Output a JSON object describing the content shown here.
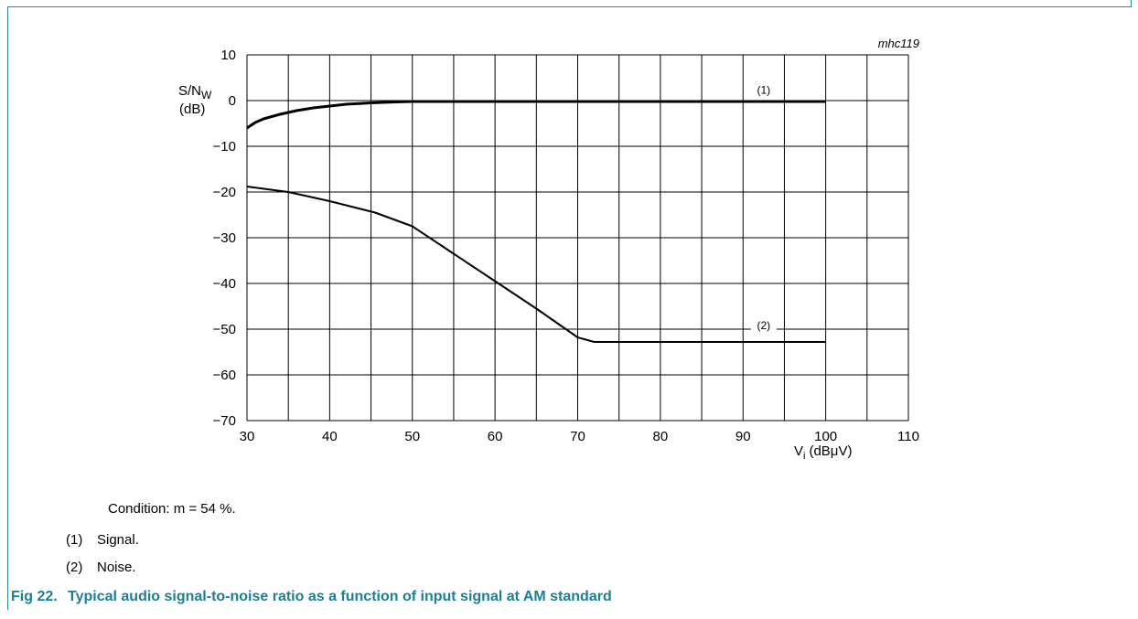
{
  "figure": {
    "code": "mhc119",
    "number": "Fig 22.",
    "title": "Typical audio signal-to-noise ratio as a function of input signal at AM standard"
  },
  "notes": {
    "condition": "Condition: m = 54 %.",
    "items": [
      {
        "num": "(1)",
        "text": "Signal."
      },
      {
        "num": "(2)",
        "text": "Noise."
      }
    ]
  },
  "colors": {
    "frame": "#2a8a98",
    "caption": "#1b7f95",
    "grid": "#000000",
    "curve": "#000000"
  },
  "chart_data": {
    "type": "line",
    "title": "",
    "xlabel": "V",
    "xlabel_sub": "i",
    "xlabel_unit": "(dBμV)",
    "ylabel": "S/N",
    "ylabel_sub": "W",
    "ylabel_unit": "(dB)",
    "xlim": [
      30,
      110
    ],
    "ylim": [
      -70,
      10
    ],
    "x_ticks": [
      30,
      40,
      50,
      60,
      70,
      80,
      90,
      100,
      110
    ],
    "y_ticks": [
      10,
      0,
      -10,
      -20,
      -30,
      -40,
      -50,
      -60,
      -70
    ],
    "y_tick_labels": [
      "10",
      "0",
      "−10",
      "−20",
      "−30",
      "−40",
      "−50",
      "−60",
      "−70"
    ],
    "grid": true,
    "grid_x_step": 5,
    "series": [
      {
        "name": "(1)",
        "x": [
          30,
          31,
          32,
          34,
          36,
          38,
          40,
          42,
          45,
          48,
          50,
          55,
          60,
          70,
          80,
          90,
          100
        ],
        "y": [
          -6,
          -4.8,
          -4,
          -3,
          -2.2,
          -1.6,
          -1.2,
          -0.8,
          -0.5,
          -0.3,
          -0.2,
          -0.2,
          -0.2,
          -0.2,
          -0.2,
          -0.2,
          -0.2
        ],
        "stroke_width": 3
      },
      {
        "name": "(2)",
        "x": [
          30,
          35,
          40,
          45.5,
          50,
          55,
          60,
          65,
          70,
          72,
          80,
          90,
          100
        ],
        "y": [
          -18.8,
          -20,
          -22,
          -24.5,
          -27.5,
          -33.5,
          -39.5,
          -45.5,
          -51.8,
          -52.8,
          -52.8,
          -52.8,
          -52.8
        ],
        "stroke_width": 2
      }
    ],
    "annotations": [
      {
        "text": "(1)",
        "x": 92.5,
        "y": 1.5
      },
      {
        "text": "(2)",
        "x": 92.5,
        "y": -50
      }
    ]
  }
}
